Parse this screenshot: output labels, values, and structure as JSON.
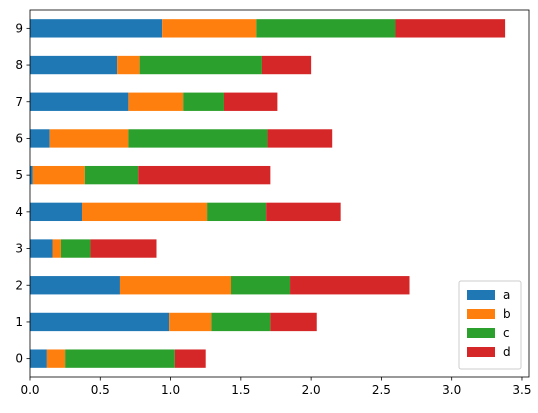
{
  "chart_data": {
    "type": "bar",
    "orientation": "horizontal",
    "stacked": true,
    "categories": [
      "0",
      "1",
      "2",
      "3",
      "4",
      "5",
      "6",
      "7",
      "8",
      "9"
    ],
    "series": [
      {
        "name": "a",
        "color": "#1f77b4",
        "values": [
          0.12,
          0.99,
          0.64,
          0.16,
          0.37,
          0.02,
          0.14,
          0.7,
          0.62,
          0.94
        ]
      },
      {
        "name": "b",
        "color": "#ff7f0e",
        "values": [
          0.13,
          0.3,
          0.79,
          0.06,
          0.89,
          0.37,
          0.56,
          0.39,
          0.16,
          0.67
        ]
      },
      {
        "name": "c",
        "color": "#2ca02c",
        "values": [
          0.78,
          0.42,
          0.42,
          0.21,
          0.42,
          0.38,
          0.99,
          0.29,
          0.87,
          0.99
        ]
      },
      {
        "name": "d",
        "color": "#d62728",
        "values": [
          0.22,
          0.33,
          0.85,
          0.47,
          0.53,
          0.94,
          0.46,
          0.38,
          0.35,
          0.78
        ]
      }
    ],
    "xlim": [
      0,
      3.55
    ],
    "xticks": [
      0.0,
      0.5,
      1.0,
      1.5,
      2.0,
      2.5,
      3.0,
      3.5
    ],
    "xtick_labels": [
      "0.0",
      "0.5",
      "1.0",
      "1.5",
      "2.0",
      "2.5",
      "3.0",
      "3.5"
    ],
    "title": "",
    "xlabel": "",
    "ylabel": "",
    "grid": false,
    "legend_position": "lower-right"
  }
}
